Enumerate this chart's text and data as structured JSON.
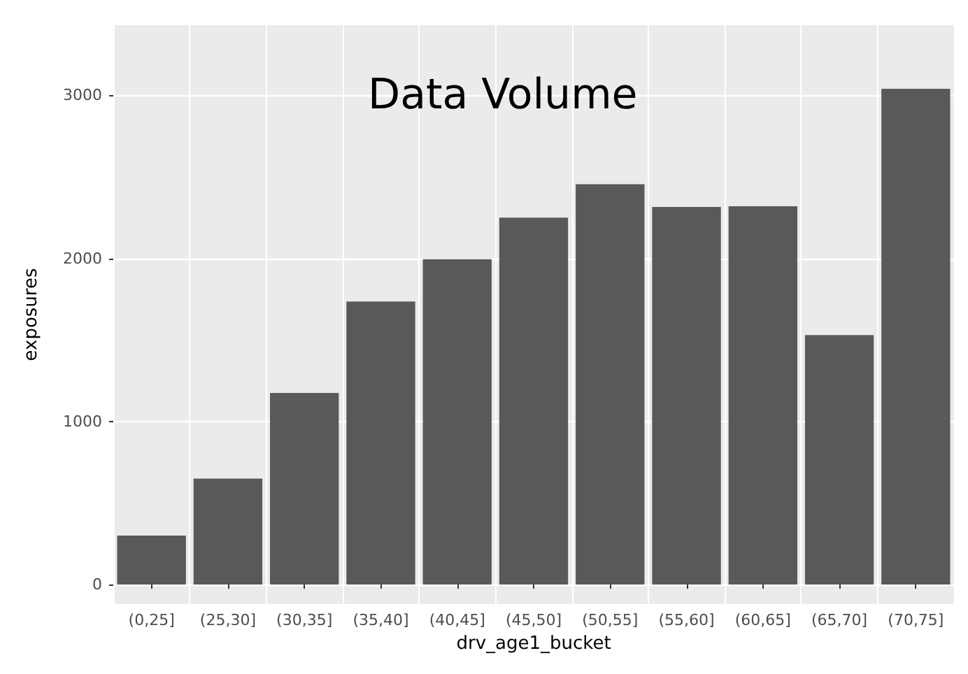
{
  "chart_data": {
    "type": "bar",
    "title": "Data Volume",
    "xlabel": "drv_age1_bucket",
    "ylabel": "exposures",
    "categories": [
      "(0,25]",
      "(25,30]",
      "(30,35]",
      "(35,40]",
      "(40,45]",
      "(45,50]",
      "(50,55]",
      "(55,60]",
      "(60,65]",
      "(65,70]",
      "(70,75]"
    ],
    "values": [
      300,
      650,
      1175,
      1735,
      1995,
      2250,
      2455,
      2315,
      2320,
      1530,
      3040
    ],
    "color": "#595959",
    "ylim": [
      -120,
      3430
    ],
    "yticks": [
      0,
      1000,
      2000,
      3000
    ],
    "grid": true
  }
}
